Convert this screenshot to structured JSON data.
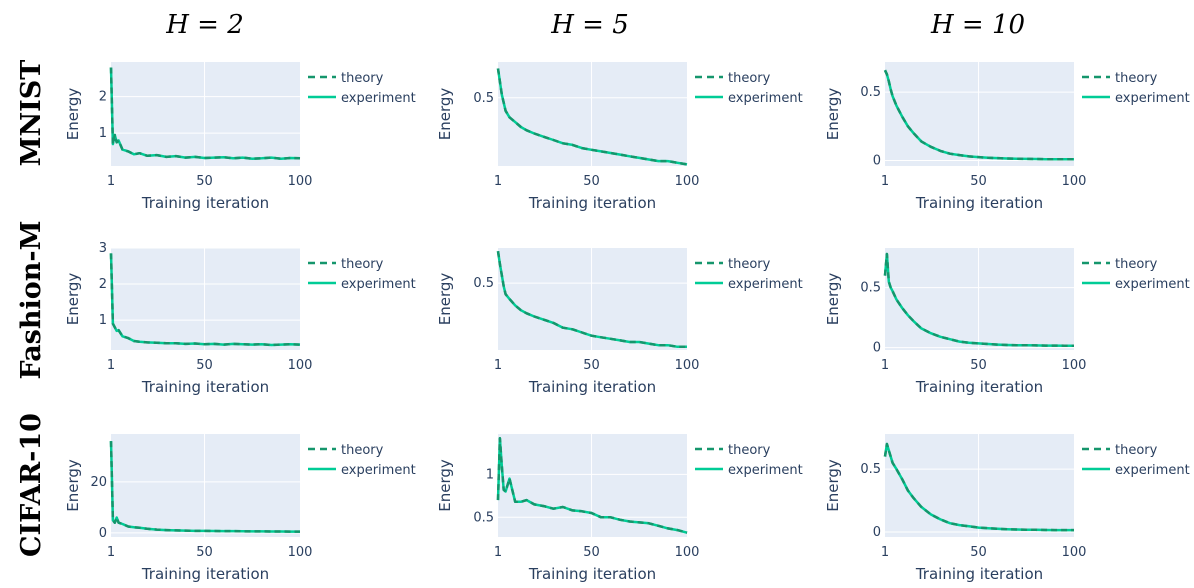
{
  "chart_data": [
    {
      "type": "line",
      "row_label": "MNIST",
      "column_title": "H = 2",
      "xlabel": "Training iteration",
      "ylabel": "Energy",
      "xlim": [
        1,
        100
      ],
      "ylim": [
        0.1,
        2.95
      ],
      "xticks": [
        1,
        50,
        100
      ],
      "yticks": [
        1,
        2
      ],
      "grid": true,
      "legend": "right",
      "x": [
        1,
        2,
        3,
        4,
        5,
        7,
        10,
        13,
        16,
        20,
        25,
        30,
        35,
        40,
        45,
        50,
        55,
        60,
        65,
        70,
        75,
        80,
        85,
        90,
        95,
        100
      ],
      "series": [
        {
          "name": "theory",
          "style": "dashed",
          "values": [
            2.8,
            0.7,
            0.95,
            0.75,
            0.8,
            0.55,
            0.5,
            0.42,
            0.45,
            0.38,
            0.4,
            0.35,
            0.37,
            0.33,
            0.35,
            0.32,
            0.33,
            0.34,
            0.31,
            0.33,
            0.3,
            0.31,
            0.33,
            0.3,
            0.32,
            0.31
          ]
        },
        {
          "name": "experiment",
          "style": "solid",
          "values": [
            2.8,
            0.7,
            0.95,
            0.75,
            0.8,
            0.55,
            0.5,
            0.42,
            0.45,
            0.38,
            0.4,
            0.35,
            0.37,
            0.33,
            0.35,
            0.32,
            0.33,
            0.34,
            0.31,
            0.33,
            0.3,
            0.31,
            0.33,
            0.3,
            0.32,
            0.31
          ]
        }
      ]
    },
    {
      "type": "line",
      "row_label": "MNIST",
      "column_title": "H = 5",
      "xlabel": "Training iteration",
      "ylabel": "Energy",
      "xlim": [
        1,
        100
      ],
      "ylim": [
        0.08,
        0.72
      ],
      "xticks": [
        1,
        50,
        100
      ],
      "yticks": [
        0.5
      ],
      "grid": true,
      "legend": "right",
      "x": [
        1,
        2,
        3,
        4,
        5,
        7,
        10,
        13,
        16,
        20,
        25,
        30,
        35,
        40,
        45,
        50,
        55,
        60,
        65,
        70,
        75,
        80,
        85,
        90,
        95,
        100
      ],
      "series": [
        {
          "name": "theory",
          "style": "dashed",
          "values": [
            0.68,
            0.6,
            0.52,
            0.47,
            0.42,
            0.38,
            0.35,
            0.32,
            0.3,
            0.28,
            0.26,
            0.24,
            0.22,
            0.21,
            0.19,
            0.18,
            0.17,
            0.16,
            0.15,
            0.14,
            0.13,
            0.12,
            0.11,
            0.11,
            0.1,
            0.09
          ]
        },
        {
          "name": "experiment",
          "style": "solid",
          "values": [
            0.68,
            0.6,
            0.52,
            0.47,
            0.42,
            0.38,
            0.35,
            0.32,
            0.3,
            0.28,
            0.26,
            0.24,
            0.22,
            0.21,
            0.19,
            0.18,
            0.17,
            0.16,
            0.15,
            0.14,
            0.13,
            0.12,
            0.11,
            0.11,
            0.1,
            0.09
          ]
        }
      ]
    },
    {
      "type": "line",
      "row_label": "MNIST",
      "column_title": "H = 10",
      "xlabel": "Training iteration",
      "ylabel": "Energy",
      "xlim": [
        1,
        100
      ],
      "ylim": [
        -0.04,
        0.72
      ],
      "xticks": [
        1,
        50,
        100
      ],
      "yticks": [
        0,
        0.5
      ],
      "grid": true,
      "legend": "right",
      "x": [
        1,
        2,
        3,
        4,
        5,
        7,
        10,
        13,
        16,
        20,
        25,
        30,
        35,
        40,
        45,
        50,
        55,
        60,
        65,
        70,
        75,
        80,
        85,
        90,
        95,
        100
      ],
      "series": [
        {
          "name": "theory",
          "style": "dashed",
          "values": [
            0.66,
            0.63,
            0.58,
            0.52,
            0.47,
            0.4,
            0.32,
            0.25,
            0.2,
            0.14,
            0.1,
            0.07,
            0.05,
            0.04,
            0.03,
            0.025,
            0.02,
            0.018,
            0.015,
            0.013,
            0.012,
            0.011,
            0.01,
            0.01,
            0.01,
            0.01
          ]
        },
        {
          "name": "experiment",
          "style": "solid",
          "values": [
            0.66,
            0.63,
            0.58,
            0.52,
            0.47,
            0.4,
            0.32,
            0.25,
            0.2,
            0.14,
            0.1,
            0.07,
            0.05,
            0.04,
            0.03,
            0.025,
            0.02,
            0.018,
            0.015,
            0.013,
            0.012,
            0.011,
            0.01,
            0.01,
            0.01,
            0.01
          ]
        }
      ]
    },
    {
      "type": "line",
      "row_label": "Fashion-M",
      "column_title": "H = 2",
      "xlabel": "Training iteration",
      "ylabel": "Energy",
      "xlim": [
        1,
        100
      ],
      "ylim": [
        0.17,
        3.0
      ],
      "xticks": [
        1,
        50,
        100
      ],
      "yticks": [
        1,
        2,
        3
      ],
      "grid": true,
      "legend": "right",
      "x": [
        1,
        2,
        3,
        4,
        5,
        7,
        10,
        13,
        16,
        20,
        25,
        30,
        35,
        40,
        45,
        50,
        55,
        60,
        65,
        70,
        75,
        80,
        85,
        90,
        95,
        100
      ],
      "series": [
        {
          "name": "theory",
          "style": "dashed",
          "values": [
            2.85,
            0.9,
            0.8,
            0.7,
            0.72,
            0.55,
            0.5,
            0.42,
            0.4,
            0.38,
            0.37,
            0.36,
            0.36,
            0.34,
            0.35,
            0.33,
            0.34,
            0.32,
            0.34,
            0.33,
            0.32,
            0.33,
            0.31,
            0.32,
            0.33,
            0.32
          ]
        },
        {
          "name": "experiment",
          "style": "solid",
          "values": [
            2.85,
            0.9,
            0.8,
            0.7,
            0.72,
            0.55,
            0.5,
            0.42,
            0.4,
            0.38,
            0.37,
            0.36,
            0.36,
            0.34,
            0.35,
            0.33,
            0.34,
            0.32,
            0.34,
            0.33,
            0.32,
            0.33,
            0.31,
            0.32,
            0.33,
            0.32
          ]
        }
      ]
    },
    {
      "type": "line",
      "row_label": "Fashion-M",
      "column_title": "H = 5",
      "xlabel": "Training iteration",
      "ylabel": "Energy",
      "xlim": [
        1,
        100
      ],
      "ylim": [
        0.08,
        0.72
      ],
      "xticks": [
        1,
        50,
        100
      ],
      "yticks": [
        0.5
      ],
      "grid": true,
      "legend": "right",
      "x": [
        1,
        2,
        3,
        4,
        5,
        7,
        10,
        13,
        16,
        20,
        25,
        30,
        35,
        40,
        45,
        50,
        55,
        60,
        65,
        70,
        75,
        80,
        85,
        90,
        95,
        100
      ],
      "series": [
        {
          "name": "theory",
          "style": "dashed",
          "values": [
            0.7,
            0.62,
            0.55,
            0.48,
            0.43,
            0.4,
            0.36,
            0.33,
            0.31,
            0.29,
            0.27,
            0.25,
            0.22,
            0.21,
            0.19,
            0.17,
            0.16,
            0.15,
            0.14,
            0.13,
            0.13,
            0.12,
            0.11,
            0.11,
            0.1,
            0.1
          ]
        },
        {
          "name": "experiment",
          "style": "solid",
          "values": [
            0.7,
            0.62,
            0.55,
            0.48,
            0.43,
            0.4,
            0.36,
            0.33,
            0.31,
            0.29,
            0.27,
            0.25,
            0.22,
            0.21,
            0.19,
            0.17,
            0.16,
            0.15,
            0.14,
            0.13,
            0.13,
            0.12,
            0.11,
            0.11,
            0.1,
            0.1
          ]
        }
      ]
    },
    {
      "type": "line",
      "row_label": "Fashion-M",
      "column_title": "H = 10",
      "xlabel": "Training iteration",
      "ylabel": "Energy",
      "xlim": [
        1,
        100
      ],
      "ylim": [
        -0.02,
        0.83
      ],
      "xticks": [
        1,
        50,
        100
      ],
      "yticks": [
        0,
        0.5
      ],
      "grid": true,
      "legend": "right",
      "x": [
        1,
        2,
        3,
        4,
        5,
        7,
        10,
        13,
        16,
        20,
        25,
        30,
        35,
        40,
        45,
        50,
        55,
        60,
        65,
        70,
        75,
        80,
        85,
        90,
        95,
        100
      ],
      "series": [
        {
          "name": "theory",
          "style": "dashed",
          "values": [
            0.6,
            0.78,
            0.55,
            0.5,
            0.47,
            0.4,
            0.33,
            0.27,
            0.22,
            0.16,
            0.12,
            0.09,
            0.07,
            0.05,
            0.04,
            0.035,
            0.03,
            0.025,
            0.022,
            0.02,
            0.02,
            0.018,
            0.017,
            0.017,
            0.016,
            0.016
          ]
        },
        {
          "name": "experiment",
          "style": "solid",
          "values": [
            0.6,
            0.78,
            0.55,
            0.5,
            0.47,
            0.4,
            0.33,
            0.27,
            0.22,
            0.16,
            0.12,
            0.09,
            0.07,
            0.05,
            0.04,
            0.035,
            0.03,
            0.025,
            0.022,
            0.02,
            0.02,
            0.018,
            0.017,
            0.017,
            0.016,
            0.016
          ]
        }
      ]
    },
    {
      "type": "line",
      "row_label": "CIFAR-10",
      "column_title": "H = 2",
      "xlabel": "Training iteration",
      "ylabel": "Energy",
      "xlim": [
        1,
        100
      ],
      "ylim": [
        -1.6,
        38.8
      ],
      "xticks": [
        1,
        50,
        100
      ],
      "yticks": [
        0,
        20
      ],
      "grid": true,
      "legend": "right",
      "x": [
        1,
        2,
        3,
        4,
        5,
        7,
        10,
        13,
        16,
        20,
        25,
        30,
        35,
        40,
        45,
        50,
        55,
        60,
        65,
        70,
        75,
        80,
        85,
        90,
        95,
        100
      ],
      "series": [
        {
          "name": "theory",
          "style": "dashed",
          "values": [
            36,
            5,
            4,
            6,
            4,
            3.5,
            2.5,
            2.2,
            2,
            1.6,
            1.3,
            1.1,
            1,
            0.9,
            0.8,
            0.8,
            0.75,
            0.7,
            0.7,
            0.65,
            0.6,
            0.6,
            0.55,
            0.55,
            0.5,
            0.5
          ]
        },
        {
          "name": "experiment",
          "style": "solid",
          "values": [
            36,
            5,
            4,
            6,
            4,
            3.5,
            2.5,
            2.2,
            2,
            1.6,
            1.3,
            1.1,
            1,
            0.9,
            0.8,
            0.8,
            0.75,
            0.7,
            0.7,
            0.65,
            0.6,
            0.6,
            0.55,
            0.55,
            0.5,
            0.5
          ]
        }
      ]
    },
    {
      "type": "line",
      "row_label": "CIFAR-10",
      "column_title": "H = 5",
      "xlabel": "Training iteration",
      "ylabel": "Energy",
      "xlim": [
        1,
        100
      ],
      "ylim": [
        0.27,
        1.47
      ],
      "xticks": [
        1,
        50,
        100
      ],
      "yticks": [
        0.5,
        1
      ],
      "grid": true,
      "legend": "right",
      "x": [
        1,
        2,
        3,
        4,
        5,
        7,
        10,
        13,
        16,
        20,
        25,
        30,
        35,
        40,
        45,
        50,
        55,
        60,
        65,
        70,
        75,
        80,
        85,
        90,
        95,
        100
      ],
      "series": [
        {
          "name": "theory",
          "style": "dashed",
          "values": [
            0.7,
            1.42,
            1.1,
            0.82,
            0.8,
            0.95,
            0.68,
            0.68,
            0.7,
            0.65,
            0.63,
            0.6,
            0.62,
            0.58,
            0.57,
            0.55,
            0.5,
            0.5,
            0.47,
            0.45,
            0.44,
            0.43,
            0.4,
            0.37,
            0.35,
            0.32
          ]
        },
        {
          "name": "experiment",
          "style": "solid",
          "values": [
            0.7,
            1.42,
            1.1,
            0.82,
            0.8,
            0.95,
            0.68,
            0.68,
            0.7,
            0.65,
            0.63,
            0.6,
            0.62,
            0.58,
            0.57,
            0.55,
            0.5,
            0.5,
            0.47,
            0.45,
            0.44,
            0.43,
            0.4,
            0.37,
            0.35,
            0.32
          ]
        }
      ]
    },
    {
      "type": "line",
      "row_label": "CIFAR-10",
      "column_title": "H = 10",
      "xlabel": "Training iteration",
      "ylabel": "Energy",
      "xlim": [
        1,
        100
      ],
      "ylim": [
        -0.04,
        0.78
      ],
      "xticks": [
        1,
        50,
        100
      ],
      "yticks": [
        0,
        0.5
      ],
      "grid": true,
      "legend": "right",
      "x": [
        1,
        2,
        3,
        4,
        5,
        7,
        10,
        13,
        16,
        20,
        25,
        30,
        35,
        40,
        45,
        50,
        55,
        60,
        65,
        70,
        75,
        80,
        85,
        90,
        95,
        100
      ],
      "series": [
        {
          "name": "theory",
          "style": "dashed",
          "values": [
            0.6,
            0.7,
            0.65,
            0.6,
            0.55,
            0.5,
            0.42,
            0.33,
            0.27,
            0.2,
            0.14,
            0.1,
            0.07,
            0.055,
            0.045,
            0.035,
            0.03,
            0.025,
            0.022,
            0.02,
            0.018,
            0.017,
            0.016,
            0.015,
            0.015,
            0.015
          ]
        },
        {
          "name": "experiment",
          "style": "solid",
          "values": [
            0.6,
            0.7,
            0.65,
            0.6,
            0.55,
            0.5,
            0.42,
            0.33,
            0.27,
            0.2,
            0.14,
            0.1,
            0.07,
            0.055,
            0.045,
            0.035,
            0.03,
            0.025,
            0.022,
            0.02,
            0.018,
            0.017,
            0.016,
            0.015,
            0.015,
            0.015
          ]
        }
      ]
    }
  ],
  "column_titles": [
    "H = 2",
    "H = 5",
    "H = 10"
  ],
  "row_labels": [
    "MNIST",
    "Fashion-M",
    "CIFAR-10"
  ],
  "colors": {
    "theory": "#15966c",
    "experiment": "#00cc96",
    "plot_bg": "#e5ecf6",
    "grid": "#ffffff",
    "text": "#2a3f5f"
  }
}
